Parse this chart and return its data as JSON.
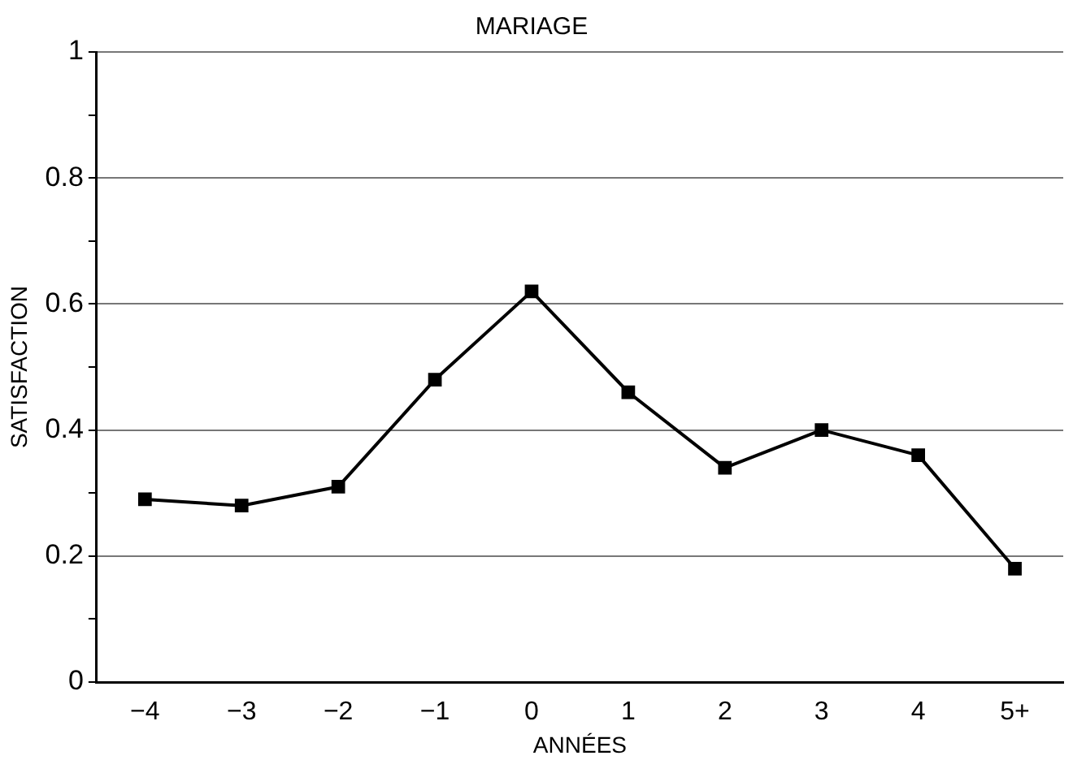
{
  "chart_data": {
    "type": "line",
    "title": "MARIAGE",
    "xlabel": "ANNÉES",
    "ylabel": "SATISFACTION",
    "categories": [
      "−4",
      "−3",
      "−2",
      "−1",
      "0",
      "1",
      "2",
      "3",
      "4",
      "5+"
    ],
    "series": [
      {
        "color": "#000000",
        "values": [
          0.29,
          0.28,
          0.31,
          0.48,
          0.62,
          0.46,
          0.34,
          0.4,
          0.36,
          0.18
        ]
      }
    ],
    "ylim": [
      0,
      1
    ],
    "yticks": [
      0,
      {
        "value": 0.1,
        "label": null
      },
      0.2,
      {
        "value": 0.3,
        "label": null
      },
      0.4,
      {
        "value": 0.5,
        "label": null
      },
      0.6,
      {
        "value": 0.7,
        "label": null
      },
      0.8,
      {
        "value": 0.9,
        "label": null
      },
      1
    ],
    "grid": "y",
    "legend": false,
    "marker": "square",
    "line_style": "solid"
  }
}
